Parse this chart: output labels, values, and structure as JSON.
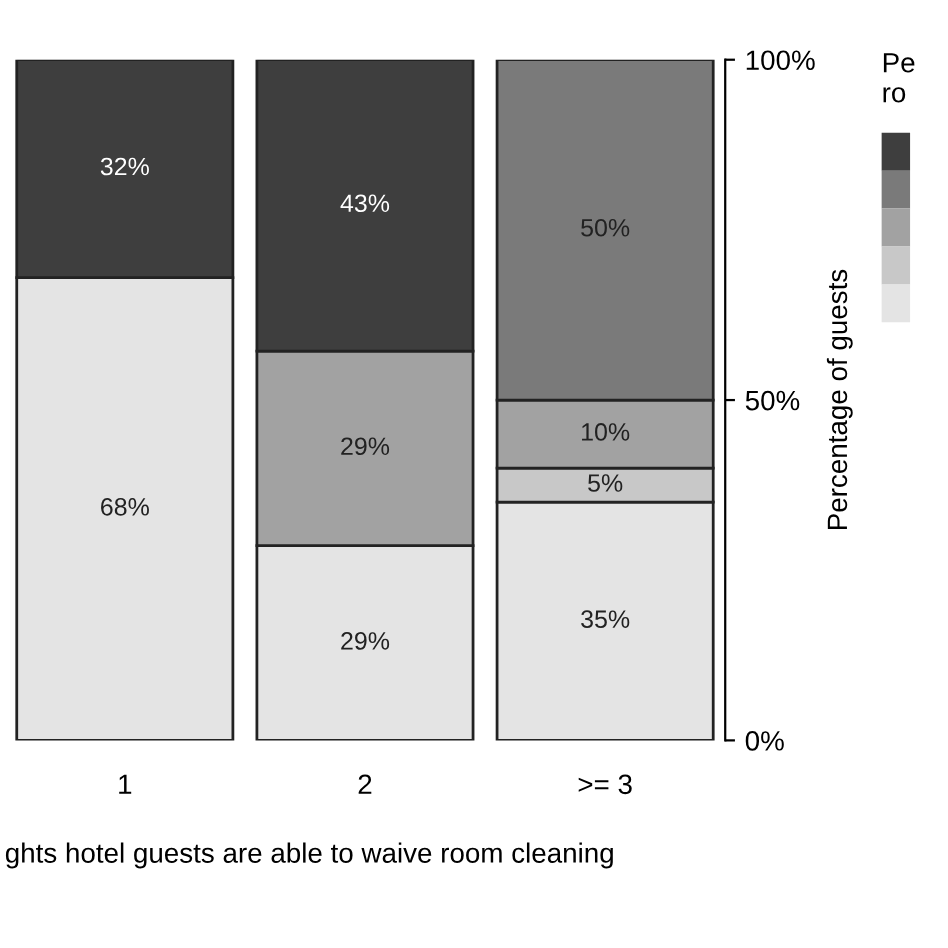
{
  "chart_data": {
    "type": "bar",
    "stacked": true,
    "categories": [
      "1",
      "2",
      ">= 3"
    ],
    "series": [
      {
        "color": "#e4e4e4",
        "values": [
          68,
          28.6,
          35
        ],
        "value_labels": [
          "68%",
          "29%",
          "35%"
        ]
      },
      {
        "color": "#c8c8c8",
        "values": [
          null,
          null,
          5
        ],
        "value_labels": [
          null,
          null,
          "5%"
        ]
      },
      {
        "color": "#a2a2a2",
        "values": [
          null,
          28.6,
          10
        ],
        "value_labels": [
          null,
          "29%",
          "10%"
        ]
      },
      {
        "color": "#7a7a7a",
        "values": [
          null,
          null,
          50
        ],
        "value_labels": [
          null,
          null,
          "50%"
        ]
      },
      {
        "color": "#3e3e3e",
        "values": [
          32,
          42.8,
          null
        ],
        "value_labels": [
          "32%",
          "43%",
          null
        ]
      }
    ],
    "ylim": [
      0,
      100
    ],
    "yticks": [
      {
        "value": 0,
        "label": "0%"
      },
      {
        "value": 50,
        "label": "50%"
      },
      {
        "value": 100,
        "label": "100%"
      }
    ],
    "ylabel": "Percentage of guests",
    "xlabel": "ghts hotel guests are able to waive room cleaning",
    "legend_title": "Pe\nro",
    "grid": false
  }
}
